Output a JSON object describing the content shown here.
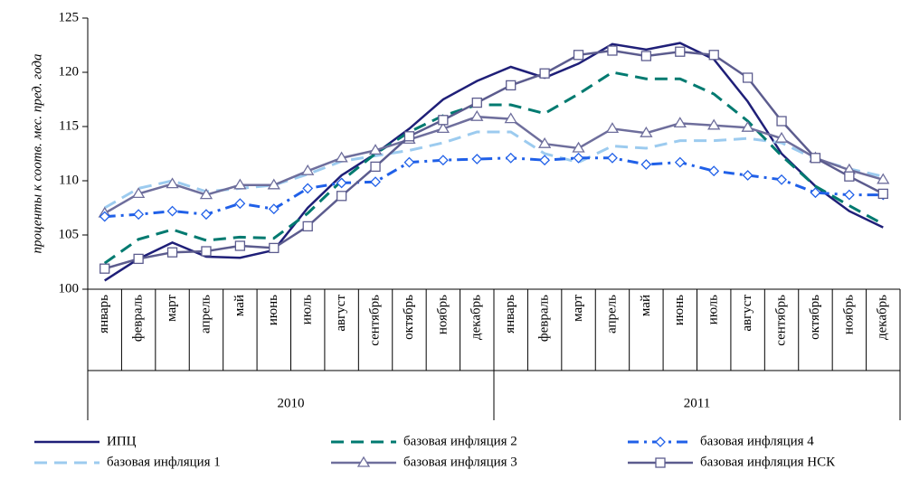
{
  "chart_data": {
    "type": "line",
    "y_label": "проценты к соотв. мес. пред. года",
    "categories": [
      "январь",
      "февраль",
      "март",
      "апрель",
      "май",
      "июнь",
      "июль",
      "август",
      "сентябрь",
      "октябрь",
      "ноябрь",
      "декабрь",
      "январь",
      "февраль",
      "март",
      "апрель",
      "май",
      "июнь",
      "июль",
      "август",
      "сентябрь",
      "октябрь",
      "ноябрь",
      "декабрь"
    ],
    "year_groups": [
      "2010",
      "2011"
    ],
    "ylim": [
      100,
      125
    ],
    "yticks": [
      100,
      105,
      110,
      115,
      120,
      125
    ],
    "grid": false,
    "series": [
      {
        "name": "ИПЦ",
        "color": "#1f1f78",
        "dash": "solid",
        "marker": "none",
        "values": [
          100.8,
          102.8,
          104.3,
          103.0,
          102.9,
          103.6,
          107.5,
          110.5,
          112.5,
          114.8,
          117.5,
          119.2,
          120.5,
          119.5,
          120.8,
          122.6,
          122.1,
          122.7,
          121.2,
          117.3,
          112.5,
          109.5,
          107.2,
          105.7
        ]
      },
      {
        "name": "базовая инфляция 1",
        "color": "#9ccbef",
        "dash": "dashed",
        "marker": "none",
        "values": [
          107.5,
          109.3,
          110.0,
          109.0,
          109.3,
          109.6,
          110.6,
          111.8,
          112.3,
          112.8,
          113.5,
          114.5,
          114.5,
          112.5,
          111.7,
          113.2,
          113.0,
          113.7,
          113.7,
          113.9,
          113.5,
          112.0,
          111.1,
          110.4
        ]
      },
      {
        "name": "базовая инфляция 2",
        "color": "#007a70",
        "dash": "dashed",
        "marker": "none",
        "values": [
          102.4,
          104.6,
          105.5,
          104.5,
          104.8,
          104.7,
          107.0,
          110.0,
          112.5,
          114.5,
          116.0,
          117.0,
          117.0,
          116.2,
          118.0,
          120.0,
          119.4,
          119.4,
          118.0,
          115.5,
          112.3,
          109.5,
          107.7,
          106.0
        ]
      },
      {
        "name": "базовая инфляция 3",
        "color": "#6e6e9c",
        "dash": "solid",
        "marker": "triangle",
        "values": [
          107.0,
          108.8,
          109.7,
          108.7,
          109.6,
          109.6,
          110.9,
          112.1,
          112.8,
          113.8,
          114.8,
          115.9,
          115.7,
          113.4,
          113.0,
          114.8,
          114.4,
          115.3,
          115.1,
          114.9,
          113.9,
          112.1,
          111.0,
          110.1
        ]
      },
      {
        "name": "базовая инфляция 4",
        "color": "#2060e8",
        "dash": "dashdot",
        "marker": "diamond",
        "values": [
          106.7,
          106.9,
          107.2,
          106.9,
          107.9,
          107.4,
          109.3,
          109.8,
          109.9,
          111.7,
          111.9,
          112.0,
          112.1,
          111.9,
          112.1,
          112.1,
          111.5,
          111.7,
          110.9,
          110.5,
          110.1,
          108.9,
          108.7,
          108.7
        ]
      },
      {
        "name": "базовая инфляция НСК",
        "color": "#5c5c8e",
        "dash": "solid",
        "marker": "square",
        "values": [
          101.9,
          102.8,
          103.4,
          103.5,
          104.0,
          103.8,
          105.8,
          108.6,
          111.3,
          114.1,
          115.6,
          117.2,
          118.8,
          119.9,
          121.6,
          122.0,
          121.5,
          121.9,
          121.6,
          119.5,
          115.5,
          112.1,
          110.4,
          108.8
        ]
      }
    ]
  }
}
